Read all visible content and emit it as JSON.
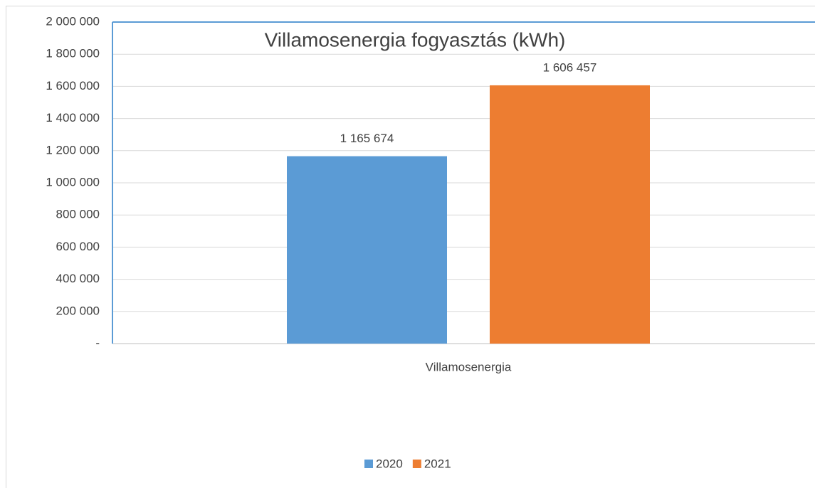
{
  "chart_data": {
    "type": "bar",
    "title": "Villamosenergia fogyasztás (kWh)",
    "categories": [
      "Villamosenergia"
    ],
    "series": [
      {
        "name": "2020",
        "color": "#5b9bd5",
        "values": [
          1165674
        ],
        "value_labels": [
          "1 165 674"
        ]
      },
      {
        "name": "2021",
        "color": "#ed7d31",
        "values": [
          1606457
        ],
        "value_labels": [
          "1 606 457"
        ]
      }
    ],
    "ylim": [
      0,
      2000000
    ],
    "yticks": [
      {
        "value": 0,
        "label": "-"
      },
      {
        "value": 200000,
        "label": "200 000"
      },
      {
        "value": 400000,
        "label": "400 000"
      },
      {
        "value": 600000,
        "label": "600 000"
      },
      {
        "value": 800000,
        "label": "800 000"
      },
      {
        "value": 1000000,
        "label": "1 000 000"
      },
      {
        "value": 1200000,
        "label": "1 200 000"
      },
      {
        "value": 1400000,
        "label": "1 400 000"
      },
      {
        "value": 1600000,
        "label": "1 600 000"
      },
      {
        "value": 1800000,
        "label": "1 800 000"
      },
      {
        "value": 2000000,
        "label": "2 000 000"
      }
    ],
    "grid": true,
    "legend": "bottom"
  }
}
